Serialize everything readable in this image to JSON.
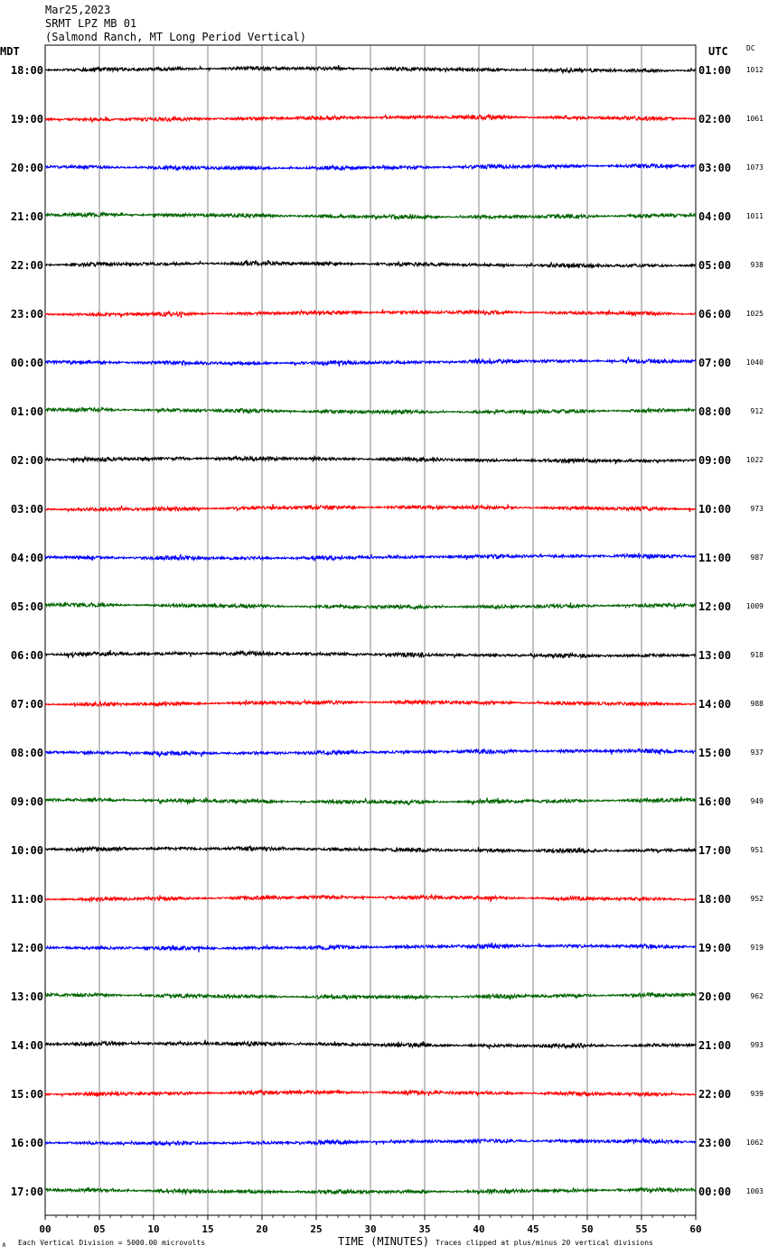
{
  "header": {
    "date": "Mar25,2023",
    "station": "SRMT LPZ MB 01",
    "location": "(Salmond Ranch, MT Long Period Vertical)"
  },
  "left_zone": "MDT",
  "right_zone": "UTC",
  "dc_label": "DC",
  "footer": {
    "scale": "Each Vertical Division = 5000.00 microvolts",
    "clip": "Traces clipped at plus/minus 20 vertical divisions",
    "mark": "∧"
  },
  "trace_colors": [
    "#000000",
    "#ff0000",
    "#0000ff",
    "#006400"
  ],
  "chart_data": {
    "type": "line",
    "title": "SRMT LPZ MB 01",
    "xlabel": "TIME (MINUTES)",
    "xlim": [
      0,
      60
    ],
    "x_ticks": [
      "00",
      "05",
      "10",
      "15",
      "20",
      "25",
      "30",
      "35",
      "40",
      "45",
      "50",
      "55",
      "60"
    ],
    "rows": [
      {
        "left": "18:00",
        "right": "01:00",
        "dc": "1012"
      },
      {
        "left": "19:00",
        "right": "02:00",
        "dc": "1061"
      },
      {
        "left": "20:00",
        "right": "03:00",
        "dc": "1073"
      },
      {
        "left": "21:00",
        "right": "04:00",
        "dc": "1011"
      },
      {
        "left": "22:00",
        "right": "05:00",
        "dc": "938"
      },
      {
        "left": "23:00",
        "right": "06:00",
        "dc": "1025"
      },
      {
        "left": "00:00",
        "right": "07:00",
        "dc": "1040"
      },
      {
        "left": "01:00",
        "right": "08:00",
        "dc": "912"
      },
      {
        "left": "02:00",
        "right": "09:00",
        "dc": "1022"
      },
      {
        "left": "03:00",
        "right": "10:00",
        "dc": "973"
      },
      {
        "left": "04:00",
        "right": "11:00",
        "dc": "987"
      },
      {
        "left": "05:00",
        "right": "12:00",
        "dc": "1009"
      },
      {
        "left": "06:00",
        "right": "13:00",
        "dc": "918"
      },
      {
        "left": "07:00",
        "right": "14:00",
        "dc": "988"
      },
      {
        "left": "08:00",
        "right": "15:00",
        "dc": "937"
      },
      {
        "left": "09:00",
        "right": "16:00",
        "dc": "949"
      },
      {
        "left": "10:00",
        "right": "17:00",
        "dc": "951"
      },
      {
        "left": "11:00",
        "right": "18:00",
        "dc": "952"
      },
      {
        "left": "12:00",
        "right": "19:00",
        "dc": "919"
      },
      {
        "left": "13:00",
        "right": "20:00",
        "dc": "962"
      },
      {
        "left": "14:00",
        "right": "21:00",
        "dc": "993"
      },
      {
        "left": "15:00",
        "right": "22:00",
        "dc": "939"
      },
      {
        "left": "16:00",
        "right": "23:00",
        "dc": "1062"
      },
      {
        "left": "17:00",
        "right": "00:00",
        "dc": "1003"
      }
    ]
  }
}
